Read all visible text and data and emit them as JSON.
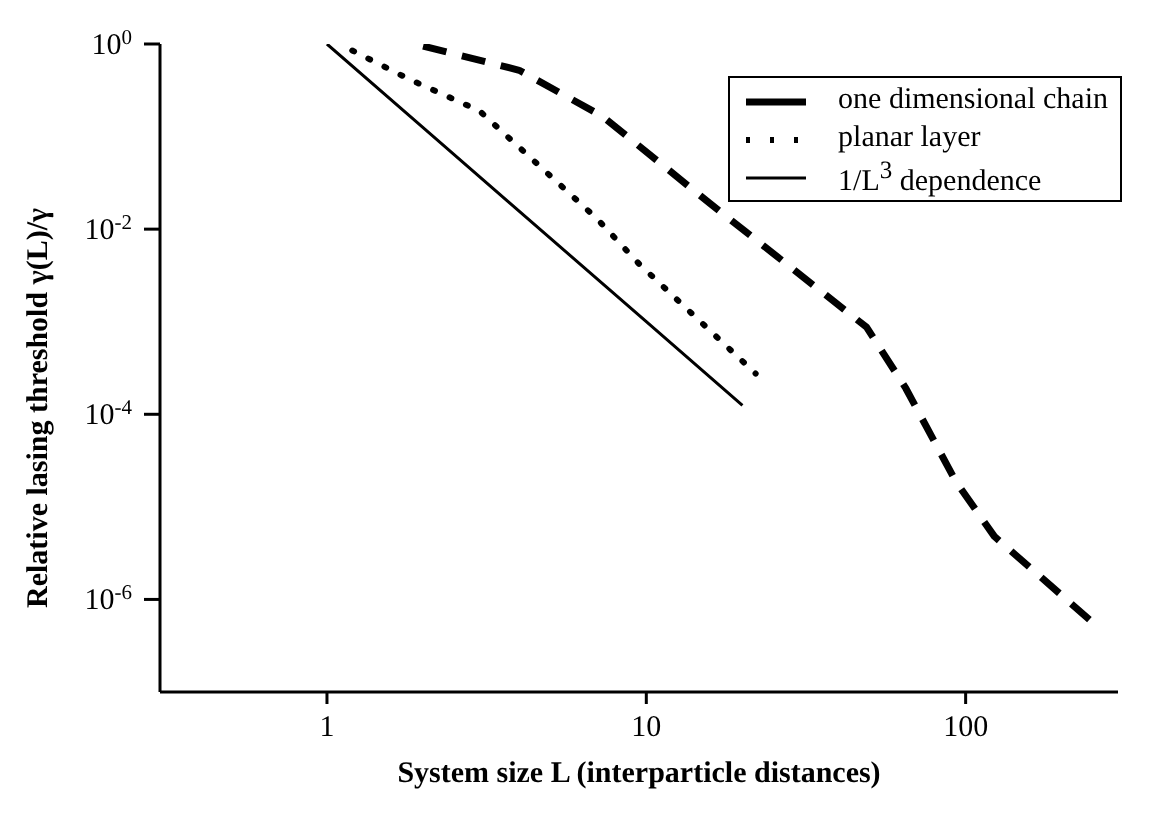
{
  "chart_data": {
    "type": "line",
    "xlabel": "System size L (interparticle distances)",
    "ylabel": "Relative lasing threshold γ(L)/γ",
    "log": "xy",
    "grid": false,
    "legend": "top right",
    "marker": "none",
    "xlim": [
      0.3,
      300
    ],
    "xticks": [
      1,
      10,
      100
    ],
    "ylim": [
      1e-07,
      1
    ],
    "yticks": [
      {
        "value": 1,
        "label": "10$^{0}$"
      },
      {
        "value": 0.01,
        "label": "10$^{-2}$"
      },
      {
        "value": 0.0001,
        "label": "10$^{-4}$"
      },
      {
        "value": 1e-06,
        "label": "10$^{-6}$"
      }
    ],
    "series": [
      {
        "name": "one dimensional chain",
        "color": "#000000",
        "line_style": "dashed",
        "x": [
          2,
          4,
          7.3,
          15.8,
          49,
          65,
          93,
          123,
          252
        ],
        "values": [
          0.95,
          0.52,
          0.165,
          0.019,
          0.00087,
          0.00019,
          1.9e-05,
          4.8e-06,
          5.5e-07
        ]
      },
      {
        "name": "planar layer",
        "color": "#000000",
        "line_style": "dotted",
        "x": [
          1.2,
          1.8,
          3,
          7,
          9.5,
          22
        ],
        "values": [
          0.85,
          0.42,
          0.19,
          0.013,
          0.0042,
          0.000275
        ]
      },
      {
        "name": "1/L$^{3}$ dependence",
        "color": "#000000",
        "line_style": "solid",
        "x": [
          1,
          2,
          5,
          10,
          20
        ],
        "values": [
          1,
          0.125,
          0.008,
          0.001,
          0.000125
        ]
      }
    ]
  }
}
